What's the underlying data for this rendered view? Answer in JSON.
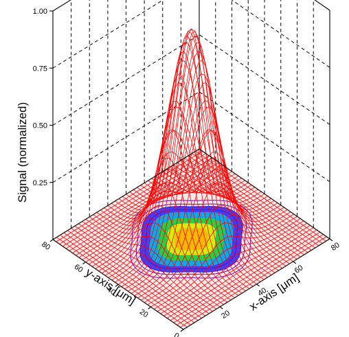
{
  "chart_data": {
    "type": "surface3d",
    "title": "",
    "xlabel": "x-axis [μm]",
    "ylabel": "y-axis [μm]",
    "zlabel": "Signal (normalized)",
    "xlim": [
      0,
      80
    ],
    "ylim": [
      0,
      80
    ],
    "zlim": [
      0,
      1
    ],
    "x_ticks": [
      "20",
      "40",
      "60",
      "80"
    ],
    "y_ticks": [
      "0",
      "20",
      "40",
      "60",
      "80"
    ],
    "z_ticks": [
      "0.25",
      "0.50",
      "0.75",
      "1.00"
    ],
    "grid": true,
    "peak": {
      "x": 40,
      "y": 40,
      "z": 0.92
    },
    "surface_color": "#ff0000",
    "contour_colors": [
      "#6a00c8",
      "#2020ff",
      "#00b8e8",
      "#30d030",
      "#f0f000",
      "#ffb000"
    ]
  }
}
